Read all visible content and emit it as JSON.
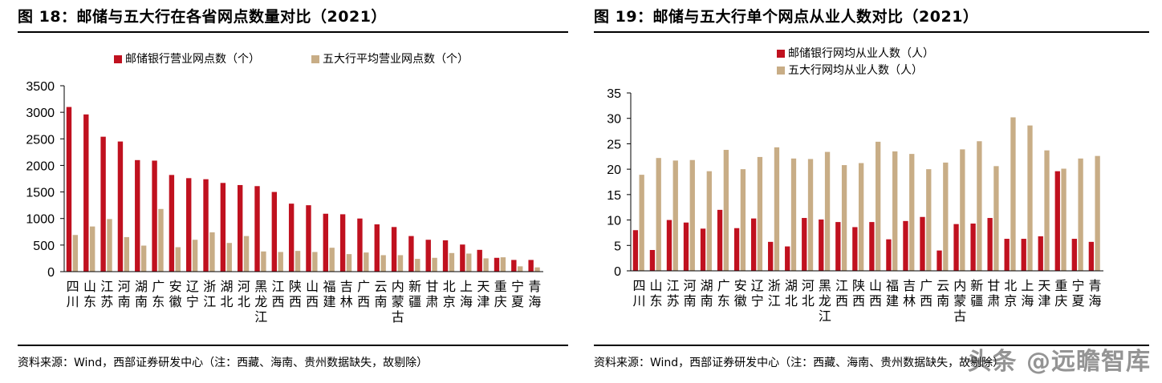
{
  "colors": {
    "red": "#C0111F",
    "tan": "#C8AD86",
    "axis": "#000000"
  },
  "chart_data": [
    {
      "type": "bar",
      "title": "图 18：邮储与五大行在各省网点数量对比（2021）",
      "categories": [
        "四川",
        "山东",
        "江苏",
        "河南",
        "湖南",
        "广东",
        "安徽",
        "辽宁",
        "浙江",
        "湖北",
        "河北",
        "黑龙江",
        "江西",
        "陕西",
        "山西",
        "福建",
        "吉林",
        "广西",
        "云南",
        "内蒙古",
        "新疆",
        "甘肃",
        "北京",
        "上海",
        "天津",
        "重庆",
        "宁夏",
        "青海"
      ],
      "series": [
        {
          "name": "邮储银行营业网点数（个）",
          "color": "#C0111F",
          "values": [
            3100,
            2960,
            2540,
            2450,
            2100,
            2090,
            1820,
            1760,
            1740,
            1670,
            1630,
            1610,
            1500,
            1280,
            1250,
            1090,
            1080,
            1000,
            890,
            840,
            670,
            600,
            590,
            510,
            410,
            260,
            220,
            220
          ]
        },
        {
          "name": "五大行平均营业网点数（个）",
          "color": "#C8AD86",
          "values": [
            690,
            850,
            990,
            650,
            490,
            1180,
            460,
            600,
            740,
            540,
            670,
            380,
            370,
            390,
            370,
            450,
            330,
            360,
            310,
            310,
            240,
            260,
            350,
            340,
            250,
            270,
            100,
            80
          ]
        }
      ],
      "ylim": [
        0,
        3500
      ],
      "yticks": [
        0,
        500,
        1000,
        1500,
        2000,
        2500,
        3000,
        3500
      ],
      "legend": "top-center",
      "source": "资料来源：Wind，西部证券研发中心（注：西藏、海南、贵州数据缺失，故剔除）"
    },
    {
      "type": "bar",
      "title": "图 19：邮储与五大行单个网点从业人数对比（2021）",
      "categories": [
        "四川",
        "山东",
        "江苏",
        "河南",
        "湖南",
        "广东",
        "安徽",
        "辽宁",
        "浙江",
        "湖北",
        "河北",
        "黑龙江",
        "江西",
        "陕西",
        "山西",
        "福建",
        "吉林",
        "广西",
        "云南",
        "内蒙古",
        "新疆",
        "甘肃",
        "北京",
        "上海",
        "天津",
        "重庆",
        "宁夏",
        "青海"
      ],
      "series": [
        {
          "name": "邮储银行网均从业人数（人）",
          "color": "#C0111F",
          "values": [
            8.0,
            4.1,
            10.0,
            9.5,
            8.3,
            12.0,
            8.4,
            10.3,
            5.7,
            4.8,
            10.4,
            10.1,
            9.6,
            8.6,
            9.6,
            6.2,
            9.8,
            10.6,
            4.0,
            9.2,
            9.3,
            10.4,
            6.3,
            6.3,
            6.8,
            19.6,
            6.3,
            5.7
          ]
        },
        {
          "name": "五大行网均从业人数（人）",
          "color": "#C8AD86",
          "values": [
            18.9,
            22.2,
            21.7,
            21.8,
            19.6,
            23.8,
            20.0,
            22.4,
            24.3,
            22.1,
            22.0,
            23.4,
            20.8,
            21.2,
            25.4,
            23.5,
            23.0,
            20.0,
            21.3,
            23.9,
            25.5,
            20.6,
            30.2,
            28.6,
            23.7,
            20.1,
            22.1,
            22.6
          ]
        }
      ],
      "ylim": [
        0,
        35
      ],
      "yticks": [
        0,
        5,
        10,
        15,
        20,
        25,
        30,
        35
      ],
      "legend": "top-center",
      "source": "资料来源：Wind，西部证券研发中心（注：西藏、海南、贵州数据缺失，故剔除）"
    }
  ],
  "watermark": "头条 @远瞻智库"
}
